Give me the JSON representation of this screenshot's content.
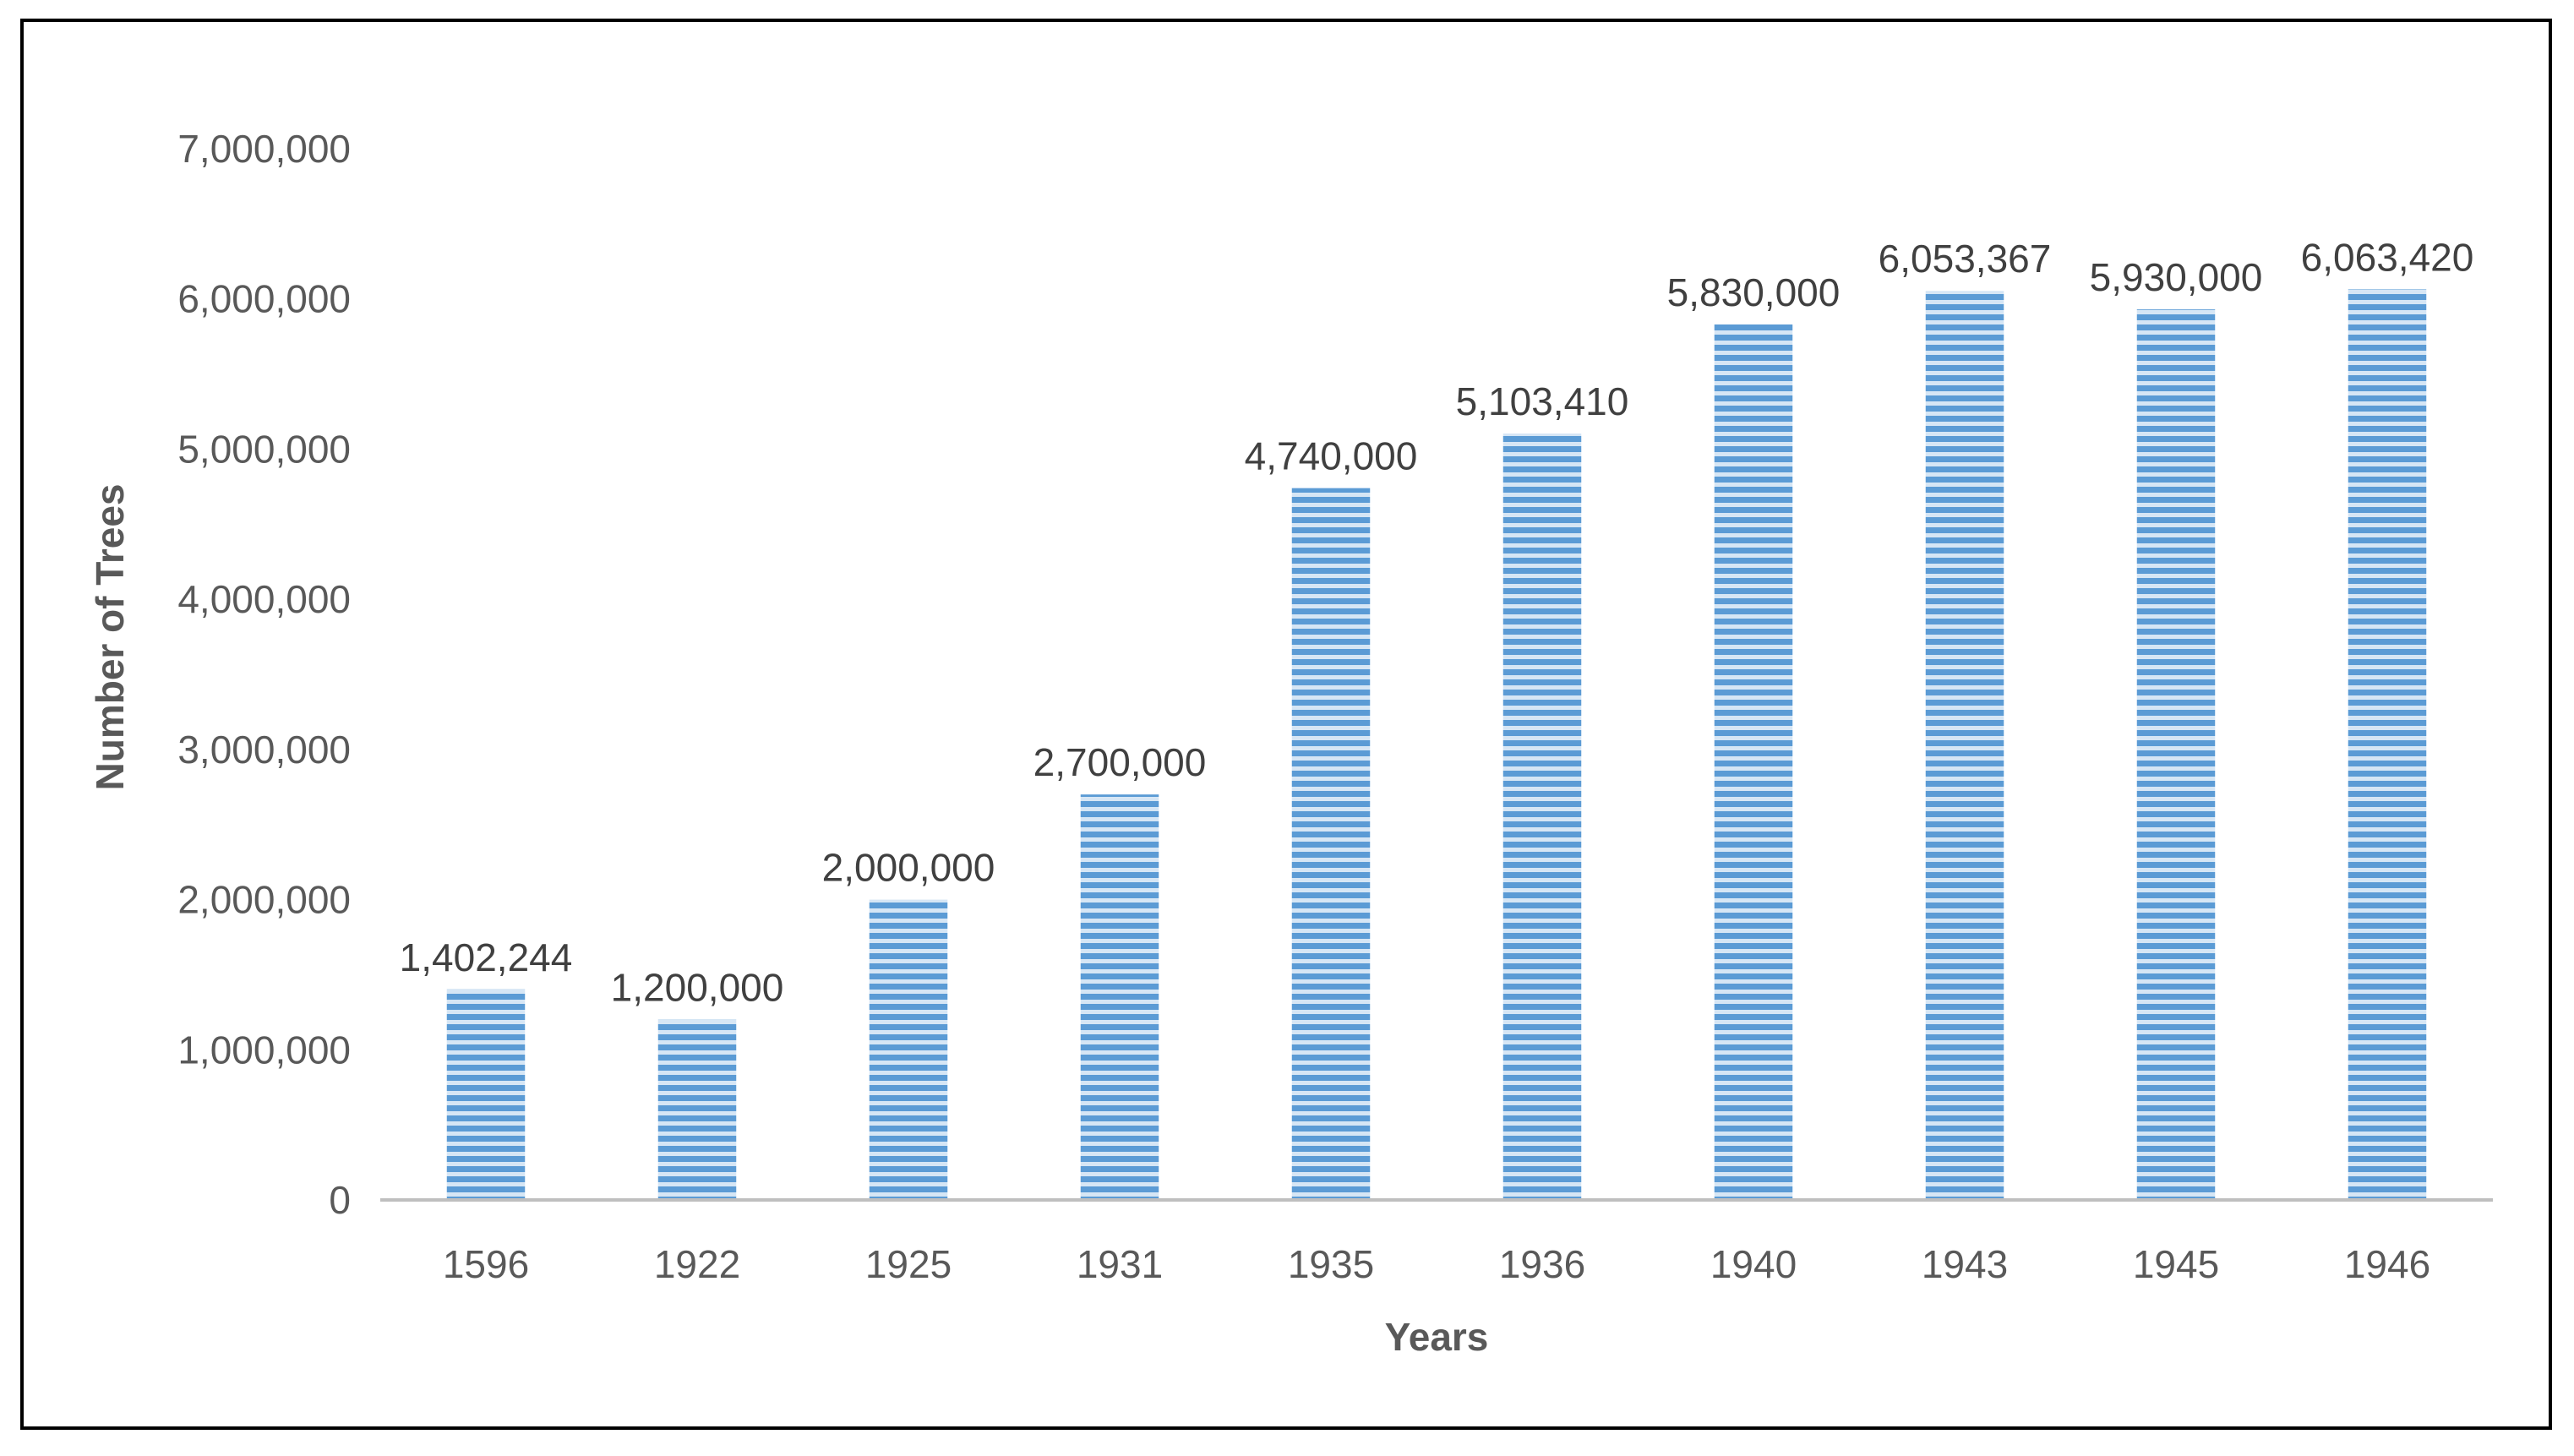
{
  "chart_data": {
    "type": "bar",
    "title": "",
    "xlabel": "Years",
    "ylabel": "Number of Trees",
    "categories": [
      "1596",
      "1922",
      "1925",
      "1931",
      "1935",
      "1936",
      "1940",
      "1943",
      "1945",
      "1946"
    ],
    "values": [
      1402244,
      1200000,
      2000000,
      2700000,
      4740000,
      5103410,
      5830000,
      6053367,
      5930000,
      6063420
    ],
    "data_labels": [
      "1,402,244",
      "1,200,000",
      "2,000,000",
      "2,700,000",
      "4,740,000",
      "5,103,410",
      "5,830,000",
      "6,053,367",
      "5,930,000",
      "6,063,420"
    ],
    "ylim": [
      0,
      7000000
    ],
    "y_ticks": [
      0,
      1000000,
      2000000,
      3000000,
      4000000,
      5000000,
      6000000,
      7000000
    ],
    "y_tick_labels": [
      "0",
      "1,000,000",
      "2,000,000",
      "3,000,000",
      "4,000,000",
      "5,000,000",
      "6,000,000",
      "7,000,000"
    ],
    "grid": false,
    "legend": "none",
    "colors": {
      "bar": "#5b9bd5",
      "bar_stripe_light": "#d6e6f5",
      "axis_line": "#bfbfbf",
      "tick_text": "#595959",
      "data_label_text": "#404040",
      "frame": "#000000"
    }
  }
}
